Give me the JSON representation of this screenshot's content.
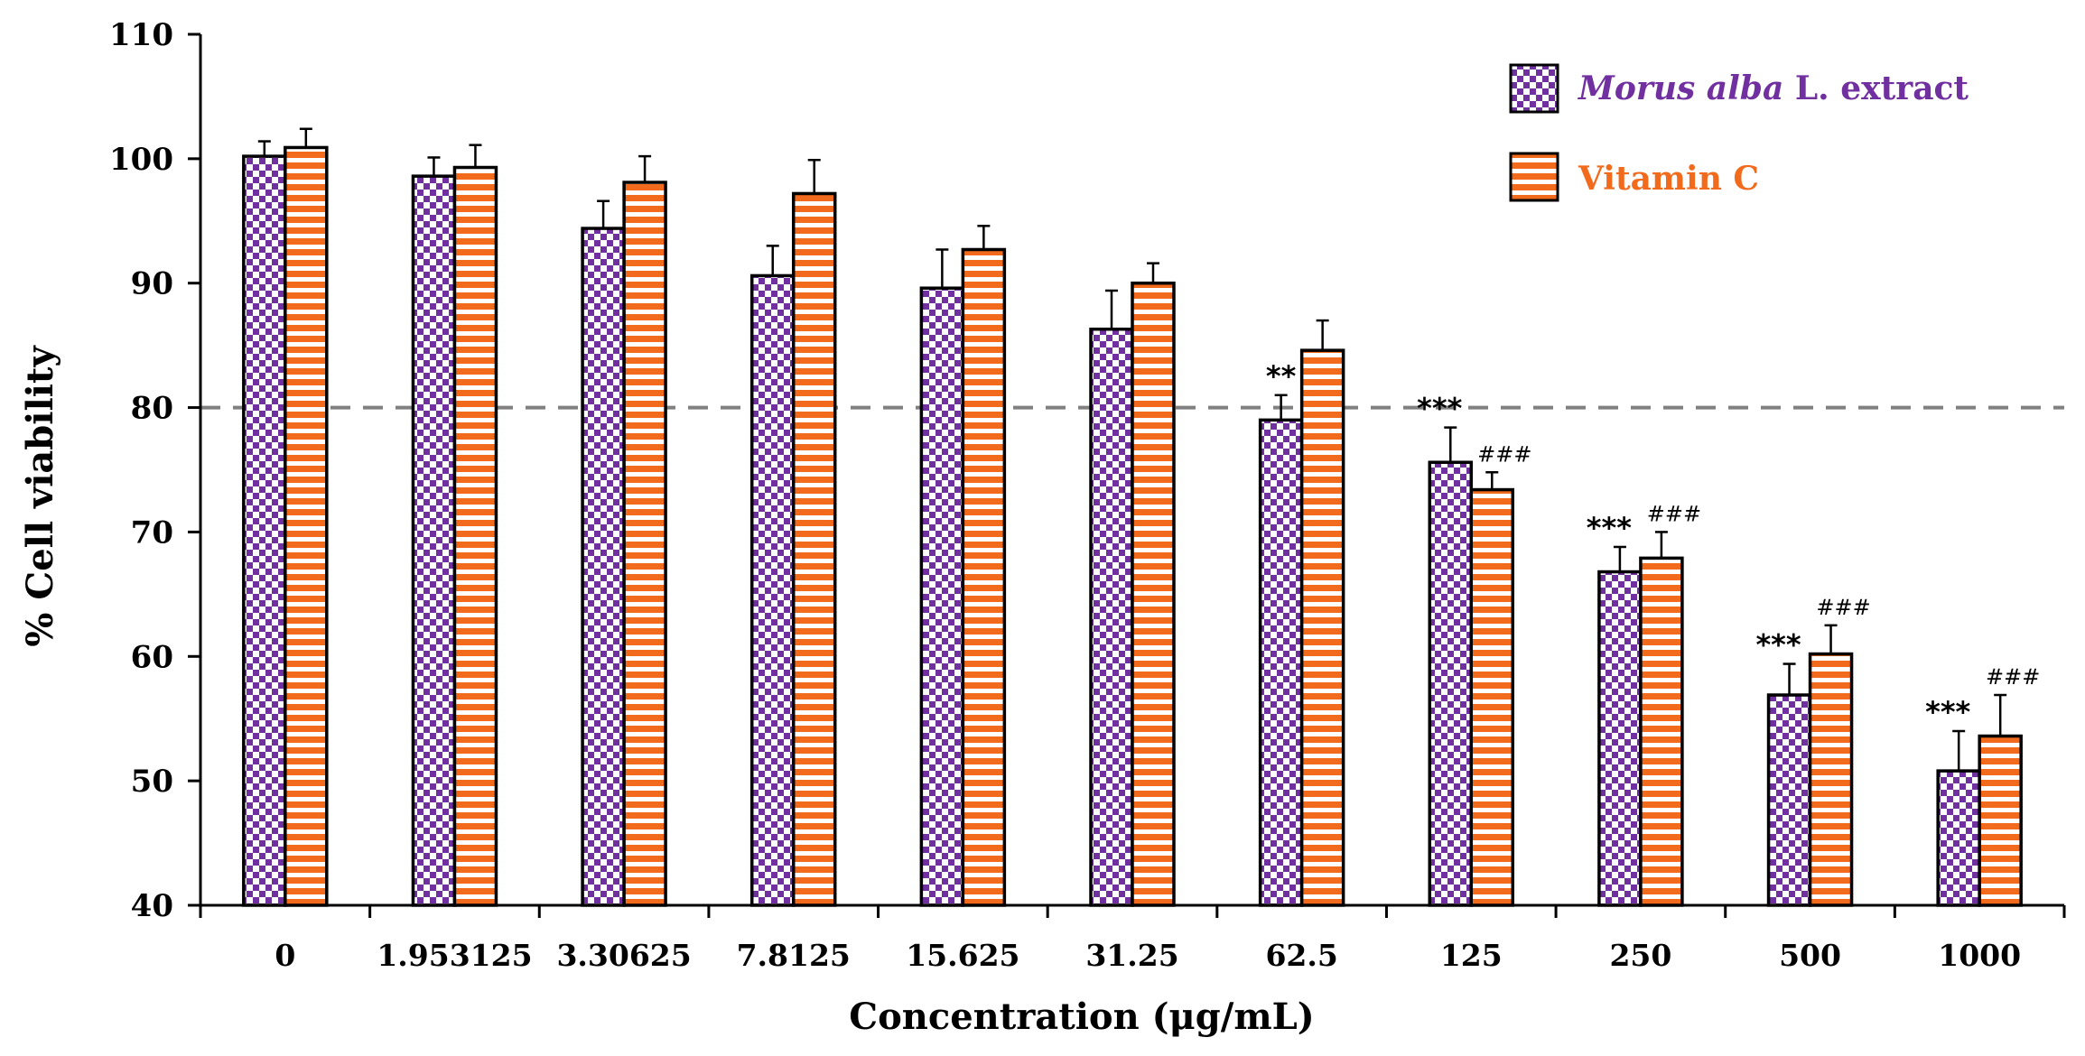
{
  "chart_data": {
    "type": "bar",
    "title": "",
    "xlabel": "Concentration (μg/mL)",
    "ylabel": "% Cell viability",
    "ylim": [
      40,
      110
    ],
    "yticks": [
      40,
      50,
      60,
      70,
      80,
      90,
      100,
      110
    ],
    "categories": [
      "0",
      "1.953125",
      "3.30625",
      "7.8125",
      "15.625",
      "31.25",
      "62.5",
      "125",
      "250",
      "500",
      "1000"
    ],
    "reference_line": {
      "y": 80,
      "style": "dashed"
    },
    "series": [
      {
        "name": "Morus alba L. extract",
        "name_italic": "Morus alba",
        "name_rest": " L. extract",
        "color": "#7030A0",
        "pattern": "checkerboard",
        "values": [
          100.2,
          98.6,
          94.4,
          90.6,
          89.6,
          86.3,
          79.0,
          75.6,
          66.8,
          56.9,
          50.8
        ],
        "errors": [
          1.2,
          1.5,
          2.2,
          2.4,
          3.1,
          3.1,
          2.0,
          2.8,
          2.0,
          2.5,
          3.2
        ],
        "annotations": [
          "",
          "",
          "",
          "",
          "",
          "",
          "**",
          "***",
          "***",
          "***",
          "***"
        ]
      },
      {
        "name": "Vitamin C",
        "color": "#F26B1D",
        "pattern": "horizontal-stripes",
        "values": [
          100.9,
          99.3,
          98.1,
          97.2,
          92.7,
          90.0,
          84.6,
          73.4,
          67.9,
          60.2,
          53.6
        ],
        "errors": [
          1.5,
          1.8,
          2.1,
          2.7,
          1.9,
          1.6,
          2.4,
          1.4,
          2.1,
          2.3,
          3.3
        ],
        "annotations": [
          "",
          "",
          "",
          "",
          "",
          "",
          "",
          "###",
          "###",
          "###",
          "###"
        ]
      }
    ],
    "legend_position": "top-right"
  }
}
